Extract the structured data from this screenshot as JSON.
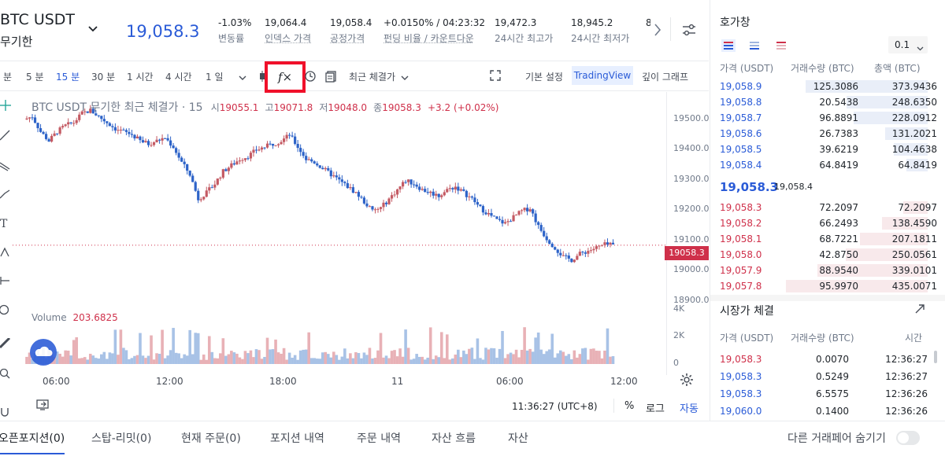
{
  "header": {
    "pair": "BTC USDT",
    "contract": "무기한",
    "price": "19,058.3",
    "stats": [
      {
        "value": "-1.03%",
        "label": "변동률"
      },
      {
        "value": "19,064.4",
        "label": "인덱스 가격"
      },
      {
        "value": "19,058.4",
        "label": "공정가격"
      },
      {
        "value": "+0.0150% / 04:23:32",
        "label": "펀딩 비율 / 카운트다운"
      },
      {
        "value": "19,472.3",
        "label": "24시간 최고가"
      },
      {
        "value": "18,945.2",
        "label": "24시간 최저가"
      },
      {
        "value": "8",
        "label": ""
      }
    ]
  },
  "toolbar": {
    "intervals": [
      "분",
      "5 분",
      "15 분",
      "30 분",
      "1 시간",
      "4 시간",
      "1 일"
    ],
    "active_interval": "15 분",
    "fx_icon": "f×",
    "price_type": "최근 체결가",
    "views": [
      "기본 설정",
      "TradingView",
      "깊이 그래프"
    ],
    "active_view": "TradingView"
  },
  "chart": {
    "title_main": "BTC USDT 무기한 최근 체결가 · 15",
    "ohlc": [
      {
        "label": "시",
        "value": "19055.1"
      },
      {
        "label": "고",
        "value": "19071.8"
      },
      {
        "label": "저",
        "value": "19048.0"
      },
      {
        "label": "종",
        "value": "19058.3"
      }
    ],
    "change": "+3.2 (+0.02%)",
    "last_price_tag": "19058.3",
    "volume_label": "Volume",
    "volume_value": "203.6825",
    "price_ticks": [
      "19500.0",
      "19400.0",
      "19300.0",
      "19200.0",
      "19100.0",
      "19000.0",
      "18900.0"
    ],
    "volume_ticks": [
      "4K",
      "2K",
      "0"
    ],
    "time_ticks": [
      "06:00",
      "12:00",
      "18:00",
      "11",
      "06:00",
      "12:00"
    ],
    "colors": {
      "up": "#c45a63",
      "down": "#2d63c8",
      "vol_up": "#e8b1b6",
      "vol_down": "#a8c2e6"
    }
  },
  "chart_footer": {
    "time": "11:36:27 (UTC+8)",
    "percent": "%",
    "log": "로그",
    "auto": "자동"
  },
  "chart_data": {
    "type": "candlestick",
    "interval": "15m",
    "ylim": [
      18870,
      19560
    ],
    "last_price": 19058.3,
    "close_path": [
      19470,
      19480,
      19430,
      19400,
      19430,
      19450,
      19460,
      19490,
      19500,
      19480,
      19460,
      19440,
      19430,
      19420,
      19400,
      19390,
      19400,
      19410,
      19380,
      19330,
      19290,
      19210,
      19230,
      19260,
      19300,
      19320,
      19340,
      19350,
      19370,
      19380,
      19390,
      19400,
      19420,
      19380,
      19340,
      19330,
      19310,
      19290,
      19270,
      19250,
      19230,
      19200,
      19170,
      19180,
      19210,
      19240,
      19270,
      19260,
      19240,
      19230,
      19220,
      19240,
      19250,
      19230,
      19210,
      19180,
      19160,
      19140,
      19130,
      19150,
      19170,
      19180,
      19120,
      19080,
      19050,
      19020,
      19010,
      19030,
      19040,
      19050,
      19060,
      19058
    ],
    "volume_scale": [
      0,
      4000
    ]
  },
  "orderbook": {
    "title": "호가창",
    "precision": "0.1",
    "headers": [
      "가격 (USDT)",
      "거래수량 (BTC)",
      "총액 (BTC)"
    ],
    "asks": [
      {
        "price": "19,058.9",
        "qty": "125.3086",
        "total": "373.9436",
        "depth": 0.86
      },
      {
        "price": "19,058.8",
        "qty": "20.5438",
        "total": "248.6350",
        "depth": 0.57
      },
      {
        "price": "19,058.7",
        "qty": "96.8891",
        "total": "228.0912",
        "depth": 0.52
      },
      {
        "price": "19,058.6",
        "qty": "26.7383",
        "total": "131.2021",
        "depth": 0.3
      },
      {
        "price": "19,058.5",
        "qty": "39.6219",
        "total": "104.4638",
        "depth": 0.24
      },
      {
        "price": "19,058.4",
        "qty": "64.8419",
        "total": "64.8419",
        "depth": 0.15
      }
    ],
    "mid_price": "19,058.3",
    "mid_mark": "19,058.4",
    "bids": [
      {
        "price": "19,058.3",
        "qty": "72.2097",
        "total": "72.2097",
        "depth": 0.17
      },
      {
        "price": "19,058.2",
        "qty": "66.2493",
        "total": "138.4590",
        "depth": 0.32
      },
      {
        "price": "19,058.1",
        "qty": "68.7221",
        "total": "207.1811",
        "depth": 0.48
      },
      {
        "price": "19,058.0",
        "qty": "42.8750",
        "total": "250.0561",
        "depth": 0.58
      },
      {
        "price": "19,057.9",
        "qty": "88.9540",
        "total": "339.0101",
        "depth": 0.78
      },
      {
        "price": "19,057.8",
        "qty": "95.9970",
        "total": "435.0071",
        "depth": 1.0
      }
    ]
  },
  "trades": {
    "title": "시장가 체결",
    "headers": [
      "가격 (USDT)",
      "거래수량 (BTC)",
      "시간"
    ],
    "rows": [
      {
        "price": "19,058.3",
        "qty": "0.0070",
        "time": "12:36:27",
        "side": "sell"
      },
      {
        "price": "19,058.3",
        "qty": "0.5249",
        "time": "12:36:27",
        "side": "buy"
      },
      {
        "price": "19,058.3",
        "qty": "6.5575",
        "time": "12:36:26",
        "side": "buy"
      },
      {
        "price": "19,060.0",
        "qty": "0.1400",
        "time": "12:36:26",
        "side": "buy"
      }
    ]
  },
  "bottom_tabs": {
    "items": [
      "오픈포지션(0)",
      "스탑-리밋(0)",
      "현재 주문(0)",
      "포지션 내역",
      "주문 내역",
      "자산 흐름",
      "자산"
    ],
    "hide_other_pairs": "다른 거래페어 숨기기"
  }
}
